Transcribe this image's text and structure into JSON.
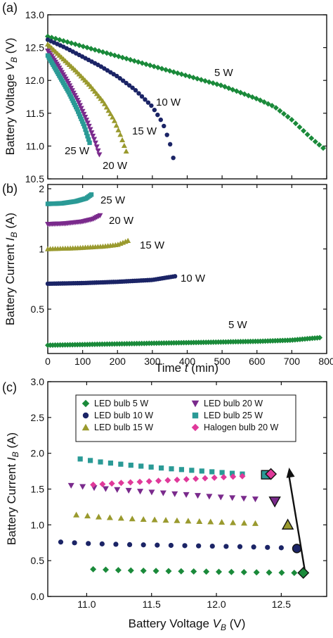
{
  "chart_data": [
    {
      "panel": "(a)",
      "type": "scatter",
      "xlabel": "",
      "ylabel": "Battery Voltage V_B (V)",
      "ylabel_parts": {
        "pre": "Battery Voltage ",
        "sym": "V",
        "sub": "B",
        "post": " (V)"
      },
      "xlim": [
        0,
        800
      ],
      "ylim": [
        10.5,
        13.0
      ],
      "yticks": [
        10.5,
        11.0,
        11.5,
        12.0,
        12.5,
        13.0
      ],
      "ytick_labels": [
        "10.5",
        "11.0",
        "11.5",
        "12.0",
        "12.5",
        "13.0"
      ],
      "series": [
        {
          "name": "5 W",
          "marker": "diamond",
          "color": "#1a8a3a",
          "x_end": 790,
          "points": [
            [
              0,
              12.67
            ],
            [
              100,
              12.52
            ],
            [
              200,
              12.37
            ],
            [
              300,
              12.22
            ],
            [
              400,
              12.07
            ],
            [
              500,
              11.92
            ],
            [
              600,
              11.72
            ],
            [
              650,
              11.6
            ],
            [
              700,
              11.4
            ],
            [
              730,
              11.25
            ],
            [
              760,
              11.1
            ],
            [
              790,
              10.97
            ]
          ]
        },
        {
          "name": "10 W",
          "marker": "circle",
          "color": "#1b2466",
          "x_end": 365,
          "points": [
            [
              0,
              12.62
            ],
            [
              50,
              12.5
            ],
            [
              100,
              12.36
            ],
            [
              150,
              12.22
            ],
            [
              200,
              12.06
            ],
            [
              250,
              11.86
            ],
            [
              300,
              11.6
            ],
            [
              330,
              11.35
            ],
            [
              350,
              11.05
            ],
            [
              360,
              10.82
            ]
          ]
        },
        {
          "name": "15 W",
          "marker": "triangle-up",
          "color": "#9a9a2e",
          "x_end": 230,
          "points": [
            [
              0,
              12.55
            ],
            [
              40,
              12.35
            ],
            [
              80,
              12.15
            ],
            [
              120,
              11.93
            ],
            [
              160,
              11.67
            ],
            [
              190,
              11.4
            ],
            [
              210,
              11.15
            ],
            [
              225,
              10.92
            ]
          ]
        },
        {
          "name": "20 W",
          "marker": "triangle-down",
          "color": "#7a2a8c",
          "x_end": 150,
          "points": [
            [
              0,
              12.45
            ],
            [
              30,
              12.22
            ],
            [
              60,
              11.95
            ],
            [
              90,
              11.65
            ],
            [
              115,
              11.35
            ],
            [
              135,
              11.08
            ],
            [
              148,
              10.87
            ]
          ]
        },
        {
          "name": "25 W",
          "marker": "square",
          "color": "#2a9a96",
          "x_end": 125,
          "points": [
            [
              0,
              12.38
            ],
            [
              30,
              12.1
            ],
            [
              60,
              11.82
            ],
            [
              85,
              11.55
            ],
            [
              105,
              11.3
            ],
            [
              120,
              11.05
            ]
          ]
        }
      ],
      "annotations": [
        "5 W",
        "10 W",
        "15 W",
        "20 W",
        "25 W"
      ]
    },
    {
      "panel": "(b)",
      "type": "scatter",
      "xlabel": "Time t (min)",
      "xlabel_parts": {
        "pre": "Time ",
        "sym": "t",
        "post": " (min)"
      },
      "ylabel": "Battery Current I_B (A)",
      "ylabel_parts": {
        "pre": "Battery Current ",
        "sym": "I",
        "sub": "B",
        "post": " (A)"
      },
      "xlim": [
        0,
        800
      ],
      "xticks": [
        0,
        100,
        200,
        300,
        400,
        500,
        600,
        700,
        800
      ],
      "xtick_labels": [
        "0",
        "100",
        "200",
        "300",
        "400",
        "500",
        "600",
        "700",
        "800"
      ],
      "yscale": "log",
      "ylim": [
        0.3,
        2.1
      ],
      "yticks": [
        0.5,
        1,
        2
      ],
      "ytick_labels": [
        "0.5",
        "1",
        "2"
      ],
      "series": [
        {
          "name": "5 W",
          "marker": "diamond",
          "color": "#1a8a3a",
          "points": [
            [
              0,
              0.33
            ],
            [
              200,
              0.335
            ],
            [
              400,
              0.34
            ],
            [
              600,
              0.345
            ],
            [
              700,
              0.35
            ],
            [
              780,
              0.36
            ]
          ]
        },
        {
          "name": "10 W",
          "marker": "circle",
          "color": "#1b2466",
          "points": [
            [
              0,
              0.67
            ],
            [
              100,
              0.675
            ],
            [
              200,
              0.685
            ],
            [
              300,
              0.7
            ],
            [
              365,
              0.73
            ]
          ]
        },
        {
          "name": "15 W",
          "marker": "triangle-up",
          "color": "#9a9a2e",
          "points": [
            [
              0,
              1.0
            ],
            [
              80,
              1.01
            ],
            [
              160,
              1.03
            ],
            [
              200,
              1.05
            ],
            [
              230,
              1.1
            ]
          ]
        },
        {
          "name": "20 W",
          "marker": "triangle-down",
          "color": "#7a2a8c",
          "points": [
            [
              0,
              1.33
            ],
            [
              50,
              1.34
            ],
            [
              100,
              1.37
            ],
            [
              130,
              1.41
            ],
            [
              150,
              1.47
            ]
          ]
        },
        {
          "name": "25 W",
          "marker": "square",
          "color": "#2a9a96",
          "points": [
            [
              0,
              1.68
            ],
            [
              40,
              1.69
            ],
            [
              80,
              1.73
            ],
            [
              110,
              1.79
            ],
            [
              125,
              1.87
            ]
          ]
        }
      ],
      "annotations": [
        "25 W",
        "20 W",
        "15 W",
        "10 W",
        "5 W"
      ]
    },
    {
      "panel": "(c)",
      "type": "scatter",
      "xlabel": "Battery Voltage V_B (V)",
      "xlabel_parts": {
        "pre": "Battery Voltage ",
        "sym": "V",
        "sub": "B",
        "post": " (V)"
      },
      "ylabel": "Battery Current I_B (A)",
      "ylabel_parts": {
        "pre": "Battery Current ",
        "sym": "I",
        "sub": "B",
        "post": " (A)"
      },
      "xlim": [
        10.7,
        12.85
      ],
      "xticks": [
        11.0,
        11.5,
        12.0,
        12.5
      ],
      "xtick_labels": [
        "11.0",
        "11.5",
        "12.0",
        "12.5"
      ],
      "ylim": [
        0.0,
        3.0
      ],
      "yticks": [
        0.0,
        0.5,
        1.0,
        1.5,
        2.0,
        2.5,
        3.0
      ],
      "ytick_labels": [
        "0.0",
        "0.5",
        "1.0",
        "1.5",
        "2.0",
        "2.5",
        "3.0"
      ],
      "legend_placement": "top",
      "series": [
        {
          "name": "LED bulb 5 W",
          "marker": "diamond",
          "color": "#1a8a3a",
          "points": [
            [
              11.05,
              0.38
            ],
            [
              11.2,
              0.37
            ],
            [
              11.4,
              0.36
            ],
            [
              11.6,
              0.355
            ],
            [
              11.8,
              0.35
            ],
            [
              12.0,
              0.345
            ],
            [
              12.2,
              0.34
            ],
            [
              12.4,
              0.335
            ],
            [
              12.6,
              0.33
            ]
          ],
          "highlight": [
            12.67,
            0.33
          ]
        },
        {
          "name": "LED bulb 10 W",
          "marker": "circle",
          "color": "#1b2466",
          "points": [
            [
              10.8,
              0.76
            ],
            [
              11.0,
              0.74
            ],
            [
              11.3,
              0.725
            ],
            [
              11.6,
              0.715
            ],
            [
              11.9,
              0.705
            ],
            [
              12.2,
              0.695
            ],
            [
              12.5,
              0.68
            ]
          ],
          "highlight": [
            12.62,
            0.67
          ]
        },
        {
          "name": "LED bulb 15 W",
          "marker": "triangle-up",
          "color": "#9a9a2e",
          "points": [
            [
              10.92,
              1.14
            ],
            [
              11.1,
              1.11
            ],
            [
              11.4,
              1.08
            ],
            [
              11.7,
              1.06
            ],
            [
              12.0,
              1.04
            ],
            [
              12.3,
              1.02
            ]
          ],
          "highlight": [
            12.55,
            1.0
          ]
        },
        {
          "name": "LED bulb 20 W",
          "marker": "triangle-down",
          "color": "#7a2a8c",
          "points": [
            [
              10.88,
              1.55
            ],
            [
              11.1,
              1.51
            ],
            [
              11.4,
              1.47
            ],
            [
              11.7,
              1.43
            ],
            [
              12.0,
              1.39
            ],
            [
              12.3,
              1.36
            ]
          ],
          "highlight": [
            12.45,
            1.33
          ]
        },
        {
          "name": "LED bulb 25 W",
          "marker": "square",
          "color": "#2a9a96",
          "points": [
            [
              10.95,
              1.92
            ],
            [
              11.1,
              1.88
            ],
            [
              11.3,
              1.84
            ],
            [
              11.6,
              1.79
            ],
            [
              11.9,
              1.75
            ],
            [
              12.2,
              1.71
            ]
          ],
          "highlight": [
            12.38,
            1.7
          ]
        },
        {
          "name": "Halogen bulb 20 W",
          "marker": "diamond",
          "color": "#e0399a",
          "points": [
            [
              11.05,
              1.56
            ],
            [
              11.3,
              1.59
            ],
            [
              11.6,
              1.62
            ],
            [
              11.9,
              1.65
            ],
            [
              12.2,
              1.68
            ]
          ],
          "highlight": [
            12.42,
            1.71
          ]
        }
      ],
      "arrow": {
        "from": [
          12.68,
          0.38
        ],
        "to": [
          12.56,
          1.8
        ]
      }
    }
  ]
}
